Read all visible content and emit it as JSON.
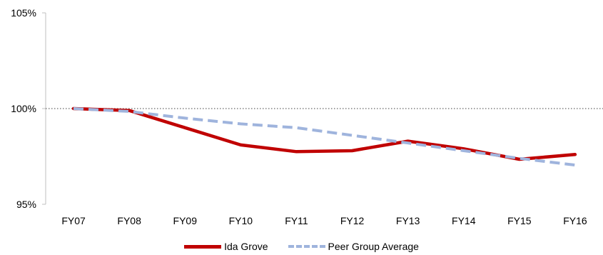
{
  "chart_data": {
    "type": "line",
    "categories": [
      "FY07",
      "FY08",
      "FY09",
      "FY10",
      "FY11",
      "FY12",
      "FY13",
      "FY14",
      "FY15",
      "FY16"
    ],
    "series": [
      {
        "name": "Ida Grove",
        "color": "#c00000",
        "style": "solid",
        "values": [
          100.0,
          99.9,
          99.0,
          98.1,
          97.75,
          97.8,
          98.3,
          97.9,
          97.35,
          97.6
        ]
      },
      {
        "name": "Peer Group Average",
        "color": "#9fb4dd",
        "style": "dashed",
        "values": [
          100.0,
          99.85,
          99.5,
          99.2,
          99.0,
          98.6,
          98.2,
          97.8,
          97.4,
          97.05
        ]
      }
    ],
    "ylim": [
      95,
      105
    ],
    "yticks": [
      95,
      100,
      105
    ],
    "ytick_labels": [
      "95%",
      "100%",
      "105%"
    ],
    "reference_line": {
      "value": 100,
      "style": "dotted",
      "color": "#808080"
    },
    "grid": false,
    "legend_position": "bottom-center"
  }
}
